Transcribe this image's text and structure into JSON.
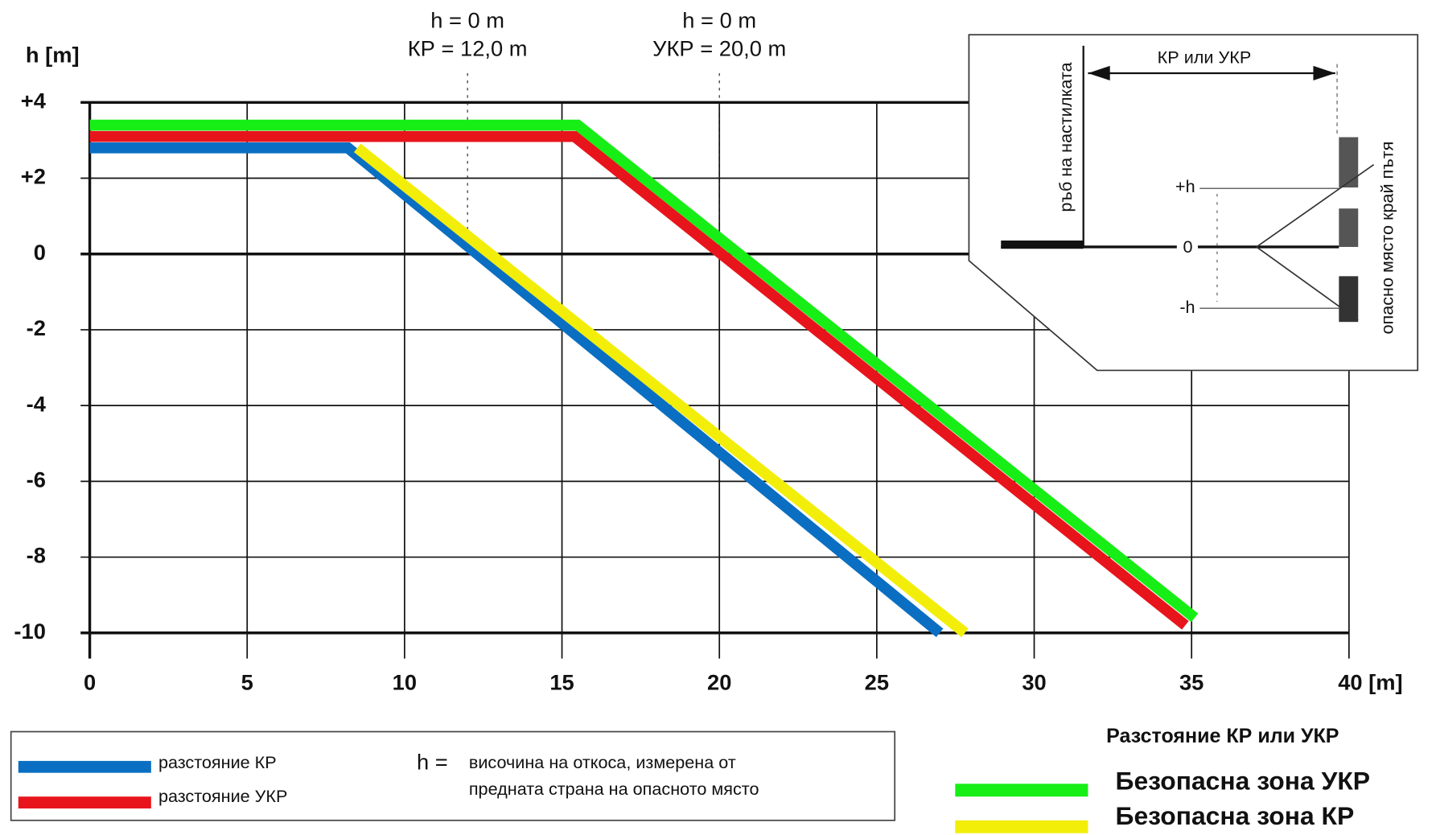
{
  "chart_data": {
    "type": "line",
    "y_label": "h [m]",
    "xlim": [
      0,
      40
    ],
    "ylim": [
      -10,
      4
    ],
    "xticks": [
      0,
      5,
      10,
      15,
      20,
      25,
      30,
      35,
      {
        "value": 40,
        "label": "40 [m]"
      }
    ],
    "yticks": [
      {
        "value": 4,
        "label": "+4"
      },
      {
        "value": 2,
        "label": "+2"
      },
      0,
      -2,
      -4,
      -6,
      -8,
      -10
    ],
    "grid": true,
    "series": [
      {
        "name": "разстояние КР",
        "color": "#0a6fc2",
        "legend": "bottom-left",
        "x": [
          0,
          8.2,
          27
        ],
        "values": [
          2.8,
          2.8,
          -10
        ]
      },
      {
        "name": "разстояние УКР",
        "color": "#e8141c",
        "legend": "bottom-left",
        "x": [
          0,
          15.4,
          34.8
        ],
        "values": [
          3.1,
          3.1,
          -9.8
        ]
      },
      {
        "name": "Безопасна зона УКР",
        "color": "#16ee16",
        "legend": "bottom-right",
        "x": [
          0,
          15.5,
          35.1
        ],
        "values": [
          3.4,
          3.4,
          -9.6
        ]
      },
      {
        "name": "Безопасна зона КР",
        "color": "#f2ee0a",
        "legend": "bottom-right",
        "x": [
          8.5,
          27.8
        ],
        "values": [
          2.8,
          -10
        ]
      }
    ],
    "legend_title": "Разстояние КР или УКР",
    "annotations": [
      {
        "x": 12,
        "lines": [
          "h =  0 m",
          "КР = 12,0 m"
        ]
      },
      {
        "x": 20,
        "lines": [
          "h  =  0 m",
          "УКР = 20,0 m"
        ]
      }
    ],
    "note": {
      "symbol": "h =",
      "lines": [
        "височина на откоса, измерена от",
        "предната страна на опасното място"
      ]
    },
    "inset": {
      "span": "КР или УКР",
      "edge": "ръб на настилката",
      "danger": "опасно  място  край  пътя",
      "plus_h": "+h",
      "zero": "0",
      "minus_h": "-h"
    }
  }
}
